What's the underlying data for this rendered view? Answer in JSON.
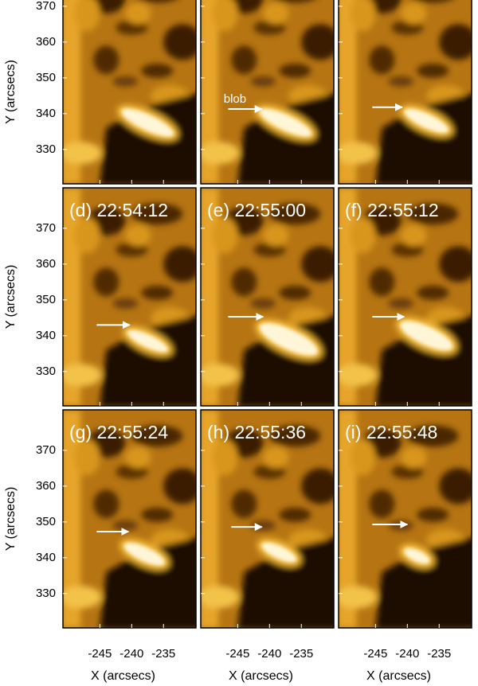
{
  "figure": {
    "panel_labels": [
      "(d) 22:54:12",
      "(e) 22:55:00",
      "(f) 22:55:12",
      "(g) 22:55:24",
      "(h) 22:55:36",
      "(i) 22:55:48"
    ],
    "annotation": "blob",
    "y_axis": {
      "label": "Y (arcsecs)",
      "ticks": [
        330,
        340,
        350,
        360,
        370
      ],
      "lim": [
        320.4,
        381.3
      ]
    },
    "x_axis": {
      "label": "X (arcsecs)",
      "ticks": [
        -245,
        -240,
        -235
      ],
      "lim": [
        -250.8,
        -229.9
      ]
    }
  }
}
